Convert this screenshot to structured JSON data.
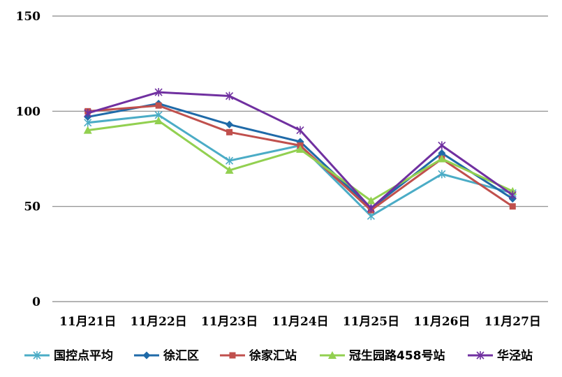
{
  "chart_data": {
    "type": "line",
    "categories": [
      "11月21日",
      "11月22日",
      "11月23日",
      "11月24日",
      "11月25日",
      "11月26日",
      "11月27日"
    ],
    "ylim": [
      0,
      150
    ],
    "yticks": [
      0,
      50,
      100,
      150
    ],
    "grid": true,
    "legend_position": "bottom",
    "series": [
      {
        "name": "国控点平均",
        "color": "#4bacc6",
        "marker": "star",
        "values": [
          94,
          98,
          74,
          82,
          45,
          67,
          57
        ]
      },
      {
        "name": "徐汇区",
        "color": "#1f6aa8",
        "marker": "diamond",
        "values": [
          97,
          104,
          93,
          84,
          49,
          78,
          54
        ]
      },
      {
        "name": "徐家汇站",
        "color": "#c0504d",
        "marker": "square",
        "values": [
          100,
          103,
          89,
          82,
          48,
          75,
          50
        ]
      },
      {
        "name": "冠生园路458号站",
        "color": "#92d050",
        "marker": "triangle",
        "values": [
          90,
          95,
          69,
          80,
          53,
          75,
          58
        ]
      },
      {
        "name": "华泾站",
        "color": "#7030a0",
        "marker": "star",
        "values": [
          99,
          110,
          108,
          90,
          49,
          82,
          56
        ]
      }
    ]
  }
}
